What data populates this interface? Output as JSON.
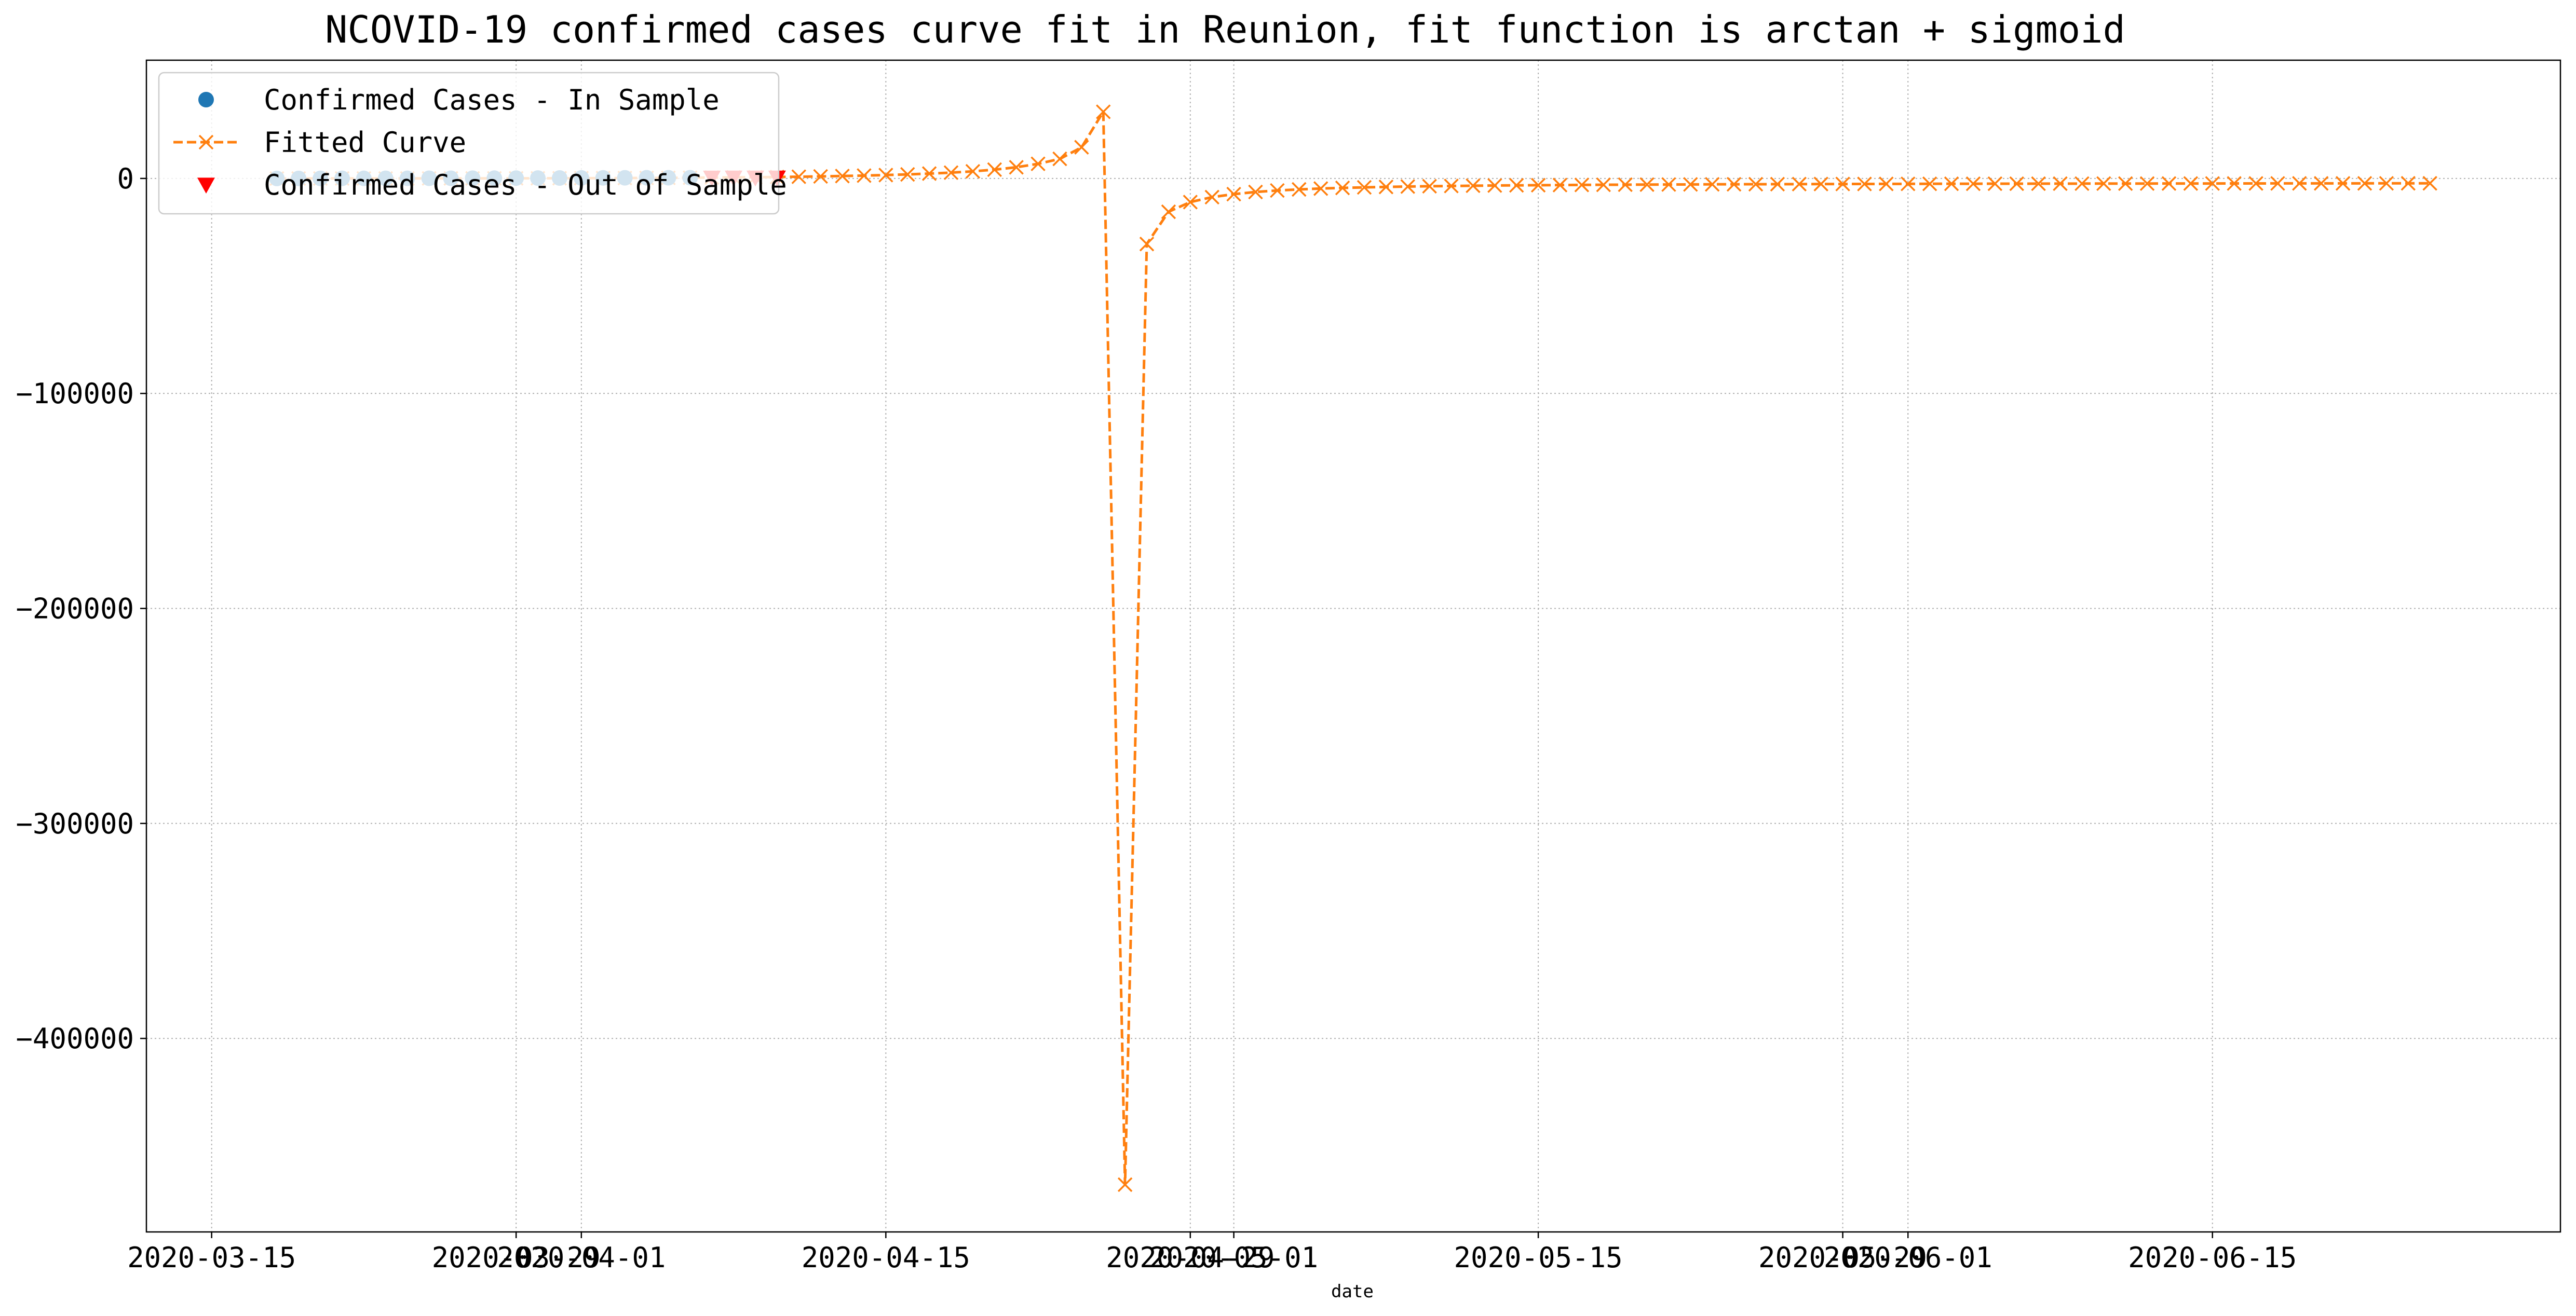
{
  "chart_data": {
    "type": "line",
    "title": "NCOVID-19 confirmed cases curve fit in Reunion, fit function is arctan + sigmoid",
    "xlabel": "date",
    "ylabel": "",
    "x_axis": {
      "type": "date",
      "range": [
        "2020-03-12",
        "2020-07-01"
      ],
      "ticks": [
        "2020-03-15",
        "2020-03-29",
        "2020-04-01",
        "2020-04-15",
        "2020-04-29",
        "2020-05-01",
        "2020-05-15",
        "2020-05-29",
        "2020-06-01",
        "2020-06-15"
      ]
    },
    "y_axis": {
      "range": [
        -490000,
        55000
      ],
      "ticks": [
        0,
        -100000,
        -200000,
        -300000,
        -400000
      ],
      "tick_labels": [
        "0",
        "−100000",
        "−200000",
        "−300000",
        "−400000"
      ]
    },
    "grid": true,
    "legend": "top-left",
    "series": [
      {
        "name": "Confirmed Cases - In Sample",
        "style": "markers",
        "marker": "circle",
        "color": "#1f77b4",
        "x": [
          "2020-03-18",
          "2020-03-19",
          "2020-03-20",
          "2020-03-21",
          "2020-03-22",
          "2020-03-23",
          "2020-03-24",
          "2020-03-25",
          "2020-03-26",
          "2020-03-27",
          "2020-03-28",
          "2020-03-29",
          "2020-03-30",
          "2020-03-31",
          "2020-04-01",
          "2020-04-02",
          "2020-04-03",
          "2020-04-04",
          "2020-04-05",
          "2020-04-06"
        ],
        "y": [
          9,
          12,
          28,
          45,
          47,
          64,
          71,
          83,
          94,
          111,
          135,
          164,
          183,
          203,
          247,
          281,
          308,
          321,
          334,
          344
        ]
      },
      {
        "name": "Fitted Curve",
        "style": "dashed-line-x-markers",
        "color": "#ff7f0e",
        "x": [
          "2020-03-18",
          "2020-03-19",
          "2020-03-20",
          "2020-03-21",
          "2020-03-22",
          "2020-03-23",
          "2020-03-24",
          "2020-03-25",
          "2020-03-26",
          "2020-03-27",
          "2020-03-28",
          "2020-03-29",
          "2020-03-30",
          "2020-03-31",
          "2020-04-01",
          "2020-04-02",
          "2020-04-03",
          "2020-04-04",
          "2020-04-05",
          "2020-04-06",
          "2020-04-07",
          "2020-04-08",
          "2020-04-09",
          "2020-04-10",
          "2020-04-11",
          "2020-04-12",
          "2020-04-13",
          "2020-04-14",
          "2020-04-15",
          "2020-04-16",
          "2020-04-17",
          "2020-04-18",
          "2020-04-19",
          "2020-04-20",
          "2020-04-21",
          "2020-04-22",
          "2020-04-23",
          "2020-04-24",
          "2020-04-25",
          "2020-04-26",
          "2020-04-27",
          "2020-04-28",
          "2020-04-29",
          "2020-04-30",
          "2020-05-01",
          "2020-05-02",
          "2020-05-03",
          "2020-05-04",
          "2020-05-05",
          "2020-05-06",
          "2020-05-07",
          "2020-05-08",
          "2020-05-09",
          "2020-05-10",
          "2020-05-11",
          "2020-05-12",
          "2020-05-13",
          "2020-05-14",
          "2020-05-15",
          "2020-05-16",
          "2020-05-17",
          "2020-05-18",
          "2020-05-19",
          "2020-05-20",
          "2020-05-21",
          "2020-05-22",
          "2020-05-23",
          "2020-05-24",
          "2020-05-25",
          "2020-05-26",
          "2020-05-27",
          "2020-05-28",
          "2020-05-29",
          "2020-05-30",
          "2020-05-31",
          "2020-06-01",
          "2020-06-02",
          "2020-06-03",
          "2020-06-04",
          "2020-06-05",
          "2020-06-06",
          "2020-06-07",
          "2020-06-08",
          "2020-06-09",
          "2020-06-10",
          "2020-06-11",
          "2020-06-12",
          "2020-06-13",
          "2020-06-14",
          "2020-06-15",
          "2020-06-16",
          "2020-06-17",
          "2020-06-18",
          "2020-06-19",
          "2020-06-20",
          "2020-06-21",
          "2020-06-22",
          "2020-06-23",
          "2020-06-24",
          "2020-06-25"
        ],
        "y": [
          -20,
          -17,
          -14,
          -10,
          -5,
          0,
          6,
          13,
          22,
          32,
          44,
          58,
          75,
          95,
          120,
          150,
          185,
          230,
          280,
          340,
          410,
          490,
          580,
          680,
          800,
          950,
          1120,
          1330,
          1580,
          1880,
          2250,
          2700,
          3300,
          4100,
          5200,
          6800,
          9100,
          14500,
          31000,
          -468000,
          -30500,
          -15500,
          -11000,
          -8700,
          -7300,
          -6300,
          -5600,
          -5100,
          -4700,
          -4400,
          -4150,
          -3950,
          -3780,
          -3630,
          -3500,
          -3390,
          -3300,
          -3210,
          -3140,
          -3070,
          -3010,
          -2950,
          -2900,
          -2860,
          -2820,
          -2780,
          -2740,
          -2710,
          -2680,
          -2650,
          -2630,
          -2600,
          -2580,
          -2560,
          -2540,
          -2520,
          -2500,
          -2480,
          -2470,
          -2450,
          -2440,
          -2430,
          -2410,
          -2400,
          -2390,
          -2380,
          -2370,
          -2360,
          -2350,
          -2340,
          -2330,
          -2320,
          -2310,
          -2305,
          -2298,
          -2290,
          -2284,
          -2278,
          -2272,
          -2266
        ]
      },
      {
        "name": "Confirmed Cases - Out of Sample",
        "style": "markers",
        "marker": "triangle-down",
        "color": "#ff0000",
        "x": [
          "2020-04-07",
          "2020-04-08",
          "2020-04-09",
          "2020-04-10"
        ],
        "y": [
          349,
          358,
          362,
          370
        ]
      }
    ]
  }
}
